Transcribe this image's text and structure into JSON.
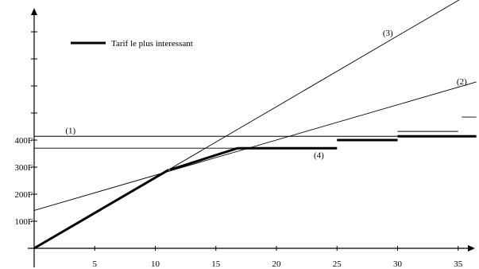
{
  "chart_data": {
    "type": "line",
    "title": "",
    "xlabel": "",
    "ylabel": "",
    "xlim": [
      0,
      36.5
    ],
    "ylim": [
      0,
      800
    ],
    "grid": false,
    "legend_placement": "top-left",
    "legend": [
      {
        "label": "Tarif le plus interessant",
        "style": "thick"
      }
    ],
    "x_ticks": [
      5,
      10,
      15,
      20,
      25,
      30,
      35
    ],
    "x_tick_labels": [
      "5",
      "10",
      "15",
      "20",
      "25",
      "30",
      "35"
    ],
    "y_ticks": [
      100,
      200,
      300,
      400,
      500,
      600,
      700,
      800
    ],
    "y_tick_labels": [
      "100F",
      "200F",
      "300F",
      "400F",
      "",
      "",
      "",
      ""
    ],
    "series": [
      {
        "name": "(1)",
        "label_at": [
          3,
          425
        ],
        "points": [
          [
            0,
            414
          ],
          [
            36.5,
            414
          ]
        ],
        "style": "thin"
      },
      {
        "name": "(2)",
        "label_at": [
          35.3,
          606
        ],
        "points": [
          [
            0,
            140
          ],
          [
            36.5,
            615
          ]
        ],
        "style": "thin"
      },
      {
        "name": "(3)",
        "label_at": [
          29.2,
          786
        ],
        "points": [
          [
            0,
            0
          ],
          [
            36.5,
            955
          ]
        ],
        "style": "thin"
      },
      {
        "name": "(4)",
        "label_at": [
          23.5,
          334
        ],
        "points": [
          [
            0,
            370
          ],
          [
            25,
            370
          ]
        ],
        "style": "thin"
      }
    ],
    "thin_segments": [
      [
        [
          30,
          432
        ],
        [
          35,
          432
        ]
      ],
      [
        [
          35.3,
          485
        ],
        [
          36.5,
          485
        ]
      ]
    ],
    "best_tariff_segments": [
      [
        [
          0,
          0
        ],
        [
          11.1,
          290
        ]
      ],
      [
        [
          11.2,
          290
        ],
        [
          16.8,
          370
        ]
      ],
      [
        [
          16.8,
          370
        ],
        [
          25,
          370
        ]
      ],
      [
        [
          25,
          400
        ],
        [
          30,
          400
        ]
      ],
      [
        [
          30,
          414
        ],
        [
          36.5,
          414
        ]
      ]
    ]
  }
}
